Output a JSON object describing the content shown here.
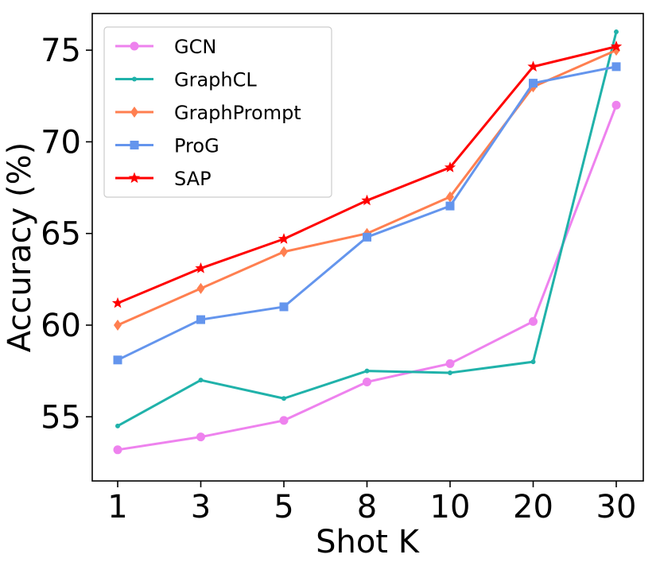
{
  "chart_data": {
    "type": "line",
    "xlabel": "Shot K",
    "ylabel": "Accuracy (%)",
    "categories": [
      "1",
      "3",
      "5",
      "8",
      "10",
      "20",
      "30"
    ],
    "ylim": [
      51.5,
      77.0
    ],
    "yticks": [
      55,
      60,
      65,
      70,
      75
    ],
    "grid": false,
    "legend_position": "top-left",
    "series": [
      {
        "name": "GCN",
        "color": "#ee82ee",
        "marker": "circle",
        "values": [
          53.2,
          53.9,
          54.8,
          56.9,
          57.9,
          60.2,
          72.0
        ]
      },
      {
        "name": "GraphCL",
        "color": "#20b2aa",
        "marker": "point",
        "values": [
          54.5,
          57.0,
          56.0,
          57.5,
          57.4,
          58.0,
          76.0
        ]
      },
      {
        "name": "GraphPrompt",
        "color": "#ff7f50",
        "marker": "diamond",
        "values": [
          60.0,
          62.0,
          64.0,
          65.0,
          67.0,
          73.0,
          75.0
        ]
      },
      {
        "name": "ProG",
        "color": "#6495ed",
        "marker": "square",
        "values": [
          58.1,
          60.3,
          61.0,
          64.8,
          66.5,
          73.2,
          74.1
        ]
      },
      {
        "name": "SAP",
        "color": "#ff0000",
        "marker": "star",
        "values": [
          61.2,
          63.1,
          64.7,
          66.8,
          68.6,
          74.1,
          75.2
        ]
      }
    ]
  }
}
